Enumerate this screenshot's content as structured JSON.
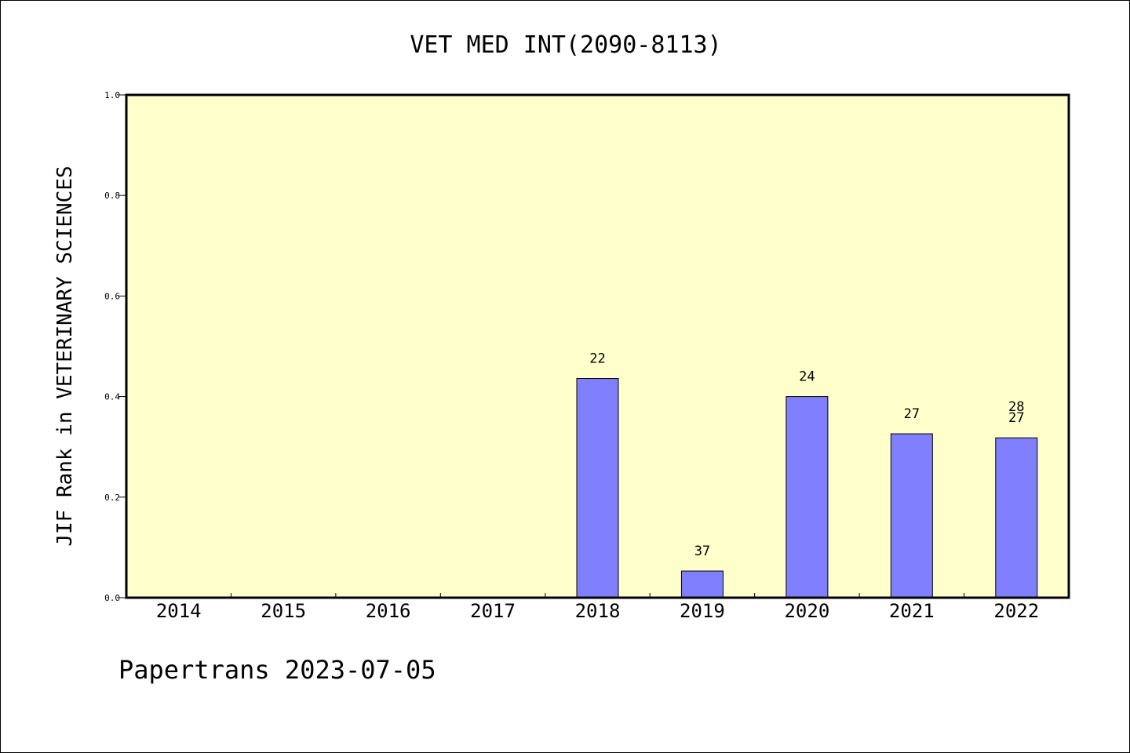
{
  "chart_data": {
    "type": "bar",
    "title": "VET MED INT(2090-8113)",
    "xlabel": "",
    "ylabel": "JIF Rank in VETERINARY SCIENCES",
    "categories": [
      "2014",
      "2015",
      "2016",
      "2017",
      "2018",
      "2019",
      "2020",
      "2021",
      "2022"
    ],
    "values": [
      null,
      null,
      null,
      null,
      0.436,
      0.053,
      0.4,
      0.326,
      0.318
    ],
    "bar_labels": [
      [],
      [],
      [],
      [],
      [
        "22"
      ],
      [
        "37"
      ],
      [
        "24"
      ],
      [
        "27"
      ],
      [
        "28",
        "27"
      ]
    ],
    "ylim": [
      0,
      1.0
    ],
    "yticks": [
      "0.0",
      "0.2",
      "0.4",
      "0.6",
      "0.8",
      "1.0"
    ],
    "grid": false,
    "colors": {
      "plot_bg": "#ffffcc",
      "bar_fill": "#8080ff",
      "bar_stroke": "#000000"
    }
  },
  "footer": {
    "text": "Papertrans 2023-07-05"
  }
}
